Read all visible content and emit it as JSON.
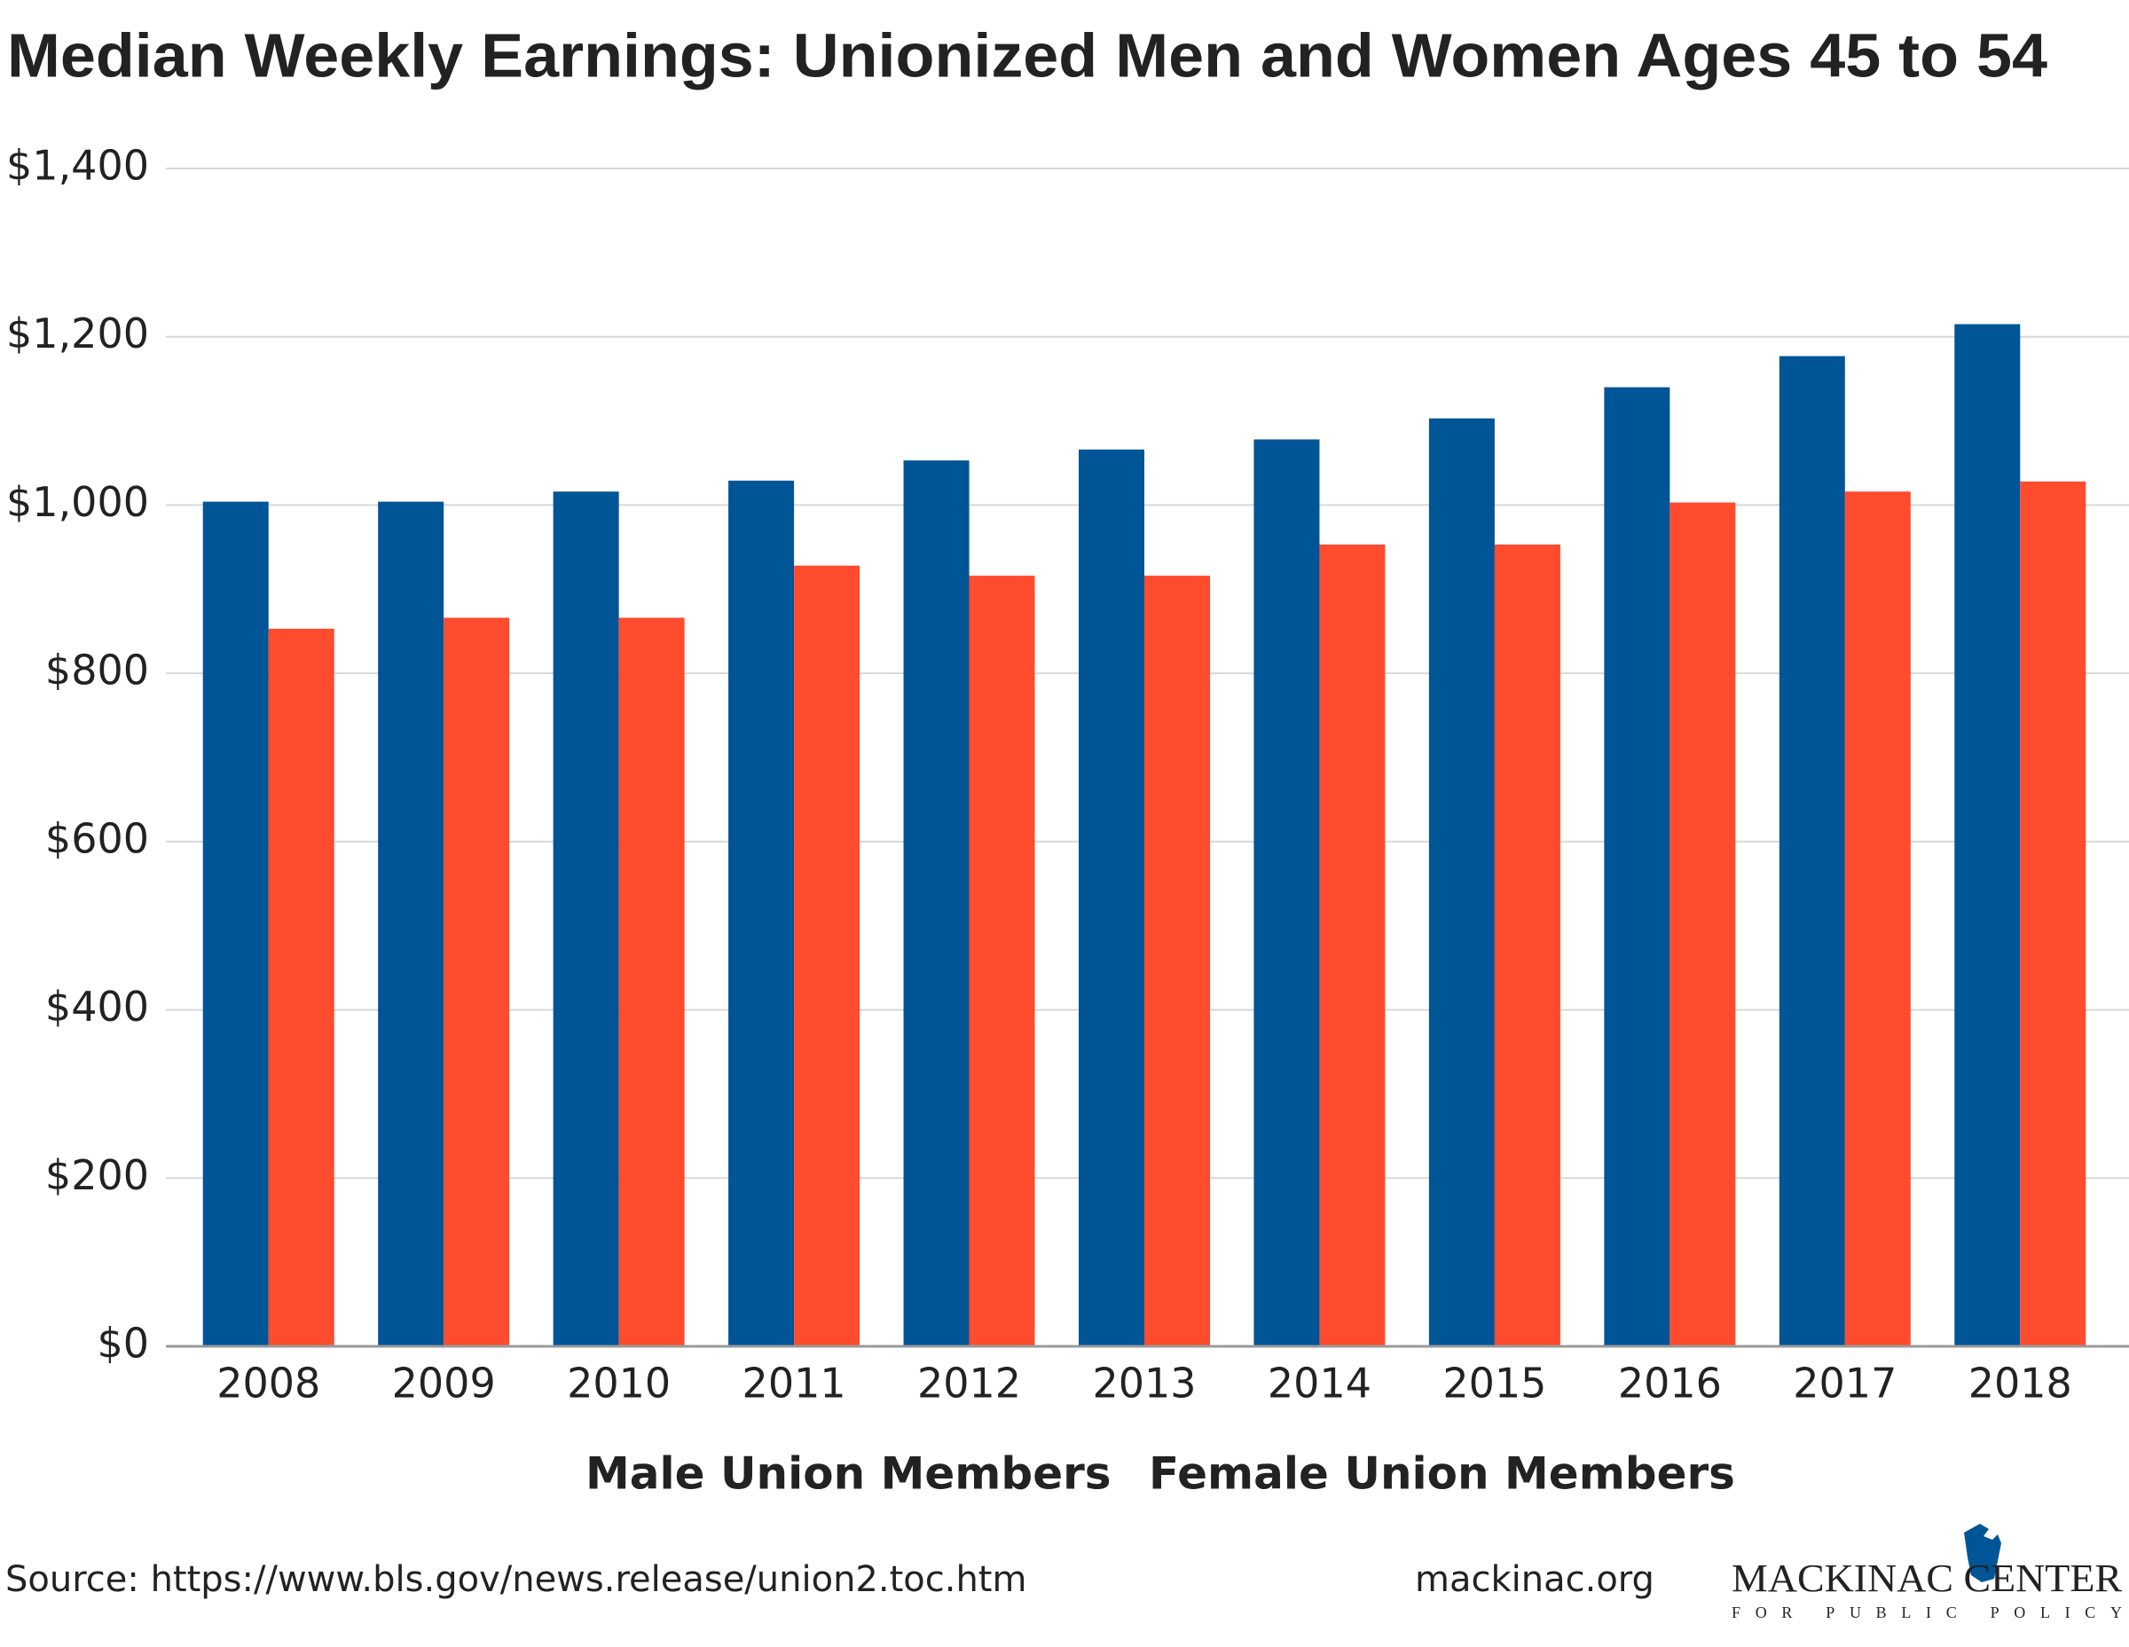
{
  "chart_data": {
    "type": "bar",
    "title": "Median Weekly Earnings: Unionized Men and Women Ages 45 to 54",
    "categories": [
      "2008",
      "2009",
      "2010",
      "2011",
      "2012",
      "2013",
      "2014",
      "2015",
      "2016",
      "2017",
      "2018"
    ],
    "series": [
      {
        "name": "Male Union Members",
        "color": "#005596",
        "values": [
          1004,
          1004,
          1016,
          1029,
          1053,
          1066,
          1078,
          1103,
          1140,
          1177,
          1215
        ]
      },
      {
        "name": "Female Union Members",
        "color": "#ff4b2e",
        "values": [
          853,
          866,
          866,
          928,
          916,
          916,
          953,
          953,
          1003,
          1016,
          1028
        ]
      }
    ],
    "ylim": [
      0,
      1400
    ],
    "yticks": [
      {
        "value": 0,
        "label": "$0"
      },
      {
        "value": 200,
        "label": "$200"
      },
      {
        "value": 400,
        "label": "$400"
      },
      {
        "value": 600,
        "label": "$600"
      },
      {
        "value": 800,
        "label": "$800"
      },
      {
        "value": 1000,
        "label": "$1,000"
      },
      {
        "value": 1200,
        "label": "$1,200"
      },
      {
        "value": 1400,
        "label": "$1,400"
      }
    ],
    "grid": true,
    "legend": "bottom",
    "source": "Source: https://www.bls.gov/news.release/union2.toc.htm",
    "website": "mackinac.org",
    "logo": {
      "name": "MACKINAC CENTER",
      "tagline": "FOR PUBLIC POLICY"
    }
  }
}
